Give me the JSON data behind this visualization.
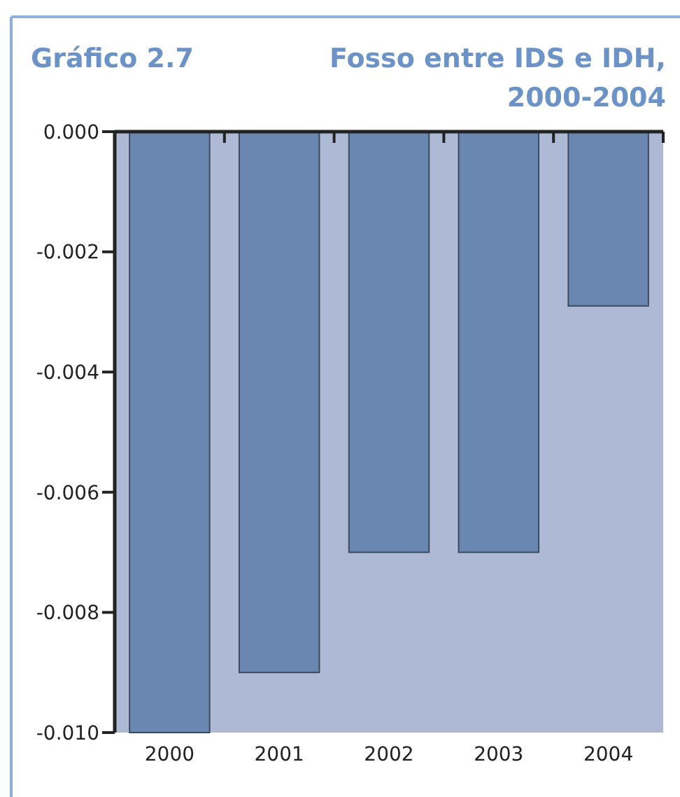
{
  "chart_data": {
    "type": "bar",
    "title": "Gráfico 2.7",
    "subtitle": "Fosso entre IDS e IDH, 2000-2004",
    "categories": [
      "2000",
      "2001",
      "2002",
      "2003",
      "2004"
    ],
    "values": [
      -0.01,
      -0.009,
      -0.007,
      -0.007,
      -0.0029
    ],
    "color": "#6a87b2",
    "ylim": [
      -0.01,
      0
    ],
    "yticks": [
      {
        "value": 0,
        "label": "0.000"
      },
      {
        "value": -0.002,
        "label": "-0.002"
      },
      {
        "value": -0.004,
        "label": "-0.004"
      },
      {
        "value": -0.006,
        "label": "-0.006"
      },
      {
        "value": -0.008,
        "label": "-0.008"
      },
      {
        "value": -0.01,
        "label": "-0.010"
      }
    ],
    "grid": false,
    "bands": [
      {
        "axis": "y",
        "from": -0.01,
        "to": 0,
        "color": "#aebad5"
      }
    ]
  }
}
